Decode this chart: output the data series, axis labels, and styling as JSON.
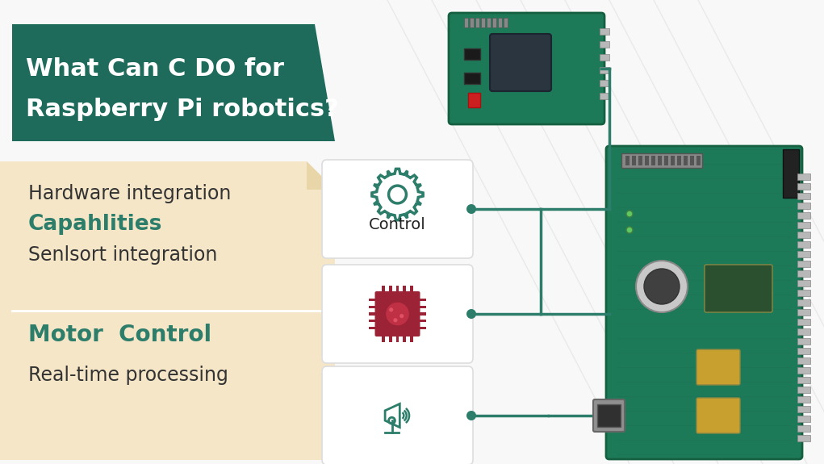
{
  "title_line1": "What Can C DO for",
  "title_line2": "Raspberry Pi robotics?",
  "title_bg_color": "#1e6b5b",
  "title_text_color": "#ffffff",
  "bg_color": "#f8f8f8",
  "tan_panel_color": "#f5e6c8",
  "tan_fold_color": "#e8d5a8",
  "white_card_color": "#ffffff",
  "teal_color": "#2d7d6b",
  "red_color": "#9b2335",
  "connector_color": "#2d7d6b",
  "dot_color": "#2d7d6b",
  "diag_line_color": "#e0e0e0",
  "pcb_green": "#1e7a58",
  "pcb_dark": "#155a40",
  "pcb_light": "#2a9a72",
  "pin_color": "#c0c0c0",
  "dark_text": "#333333",
  "text1": "Hardware integration",
  "text2": "Capahlities",
  "text3": "Senlsort integration",
  "text4": "Motor  Control",
  "text5": "Real-time processing",
  "card1_label": "Control"
}
